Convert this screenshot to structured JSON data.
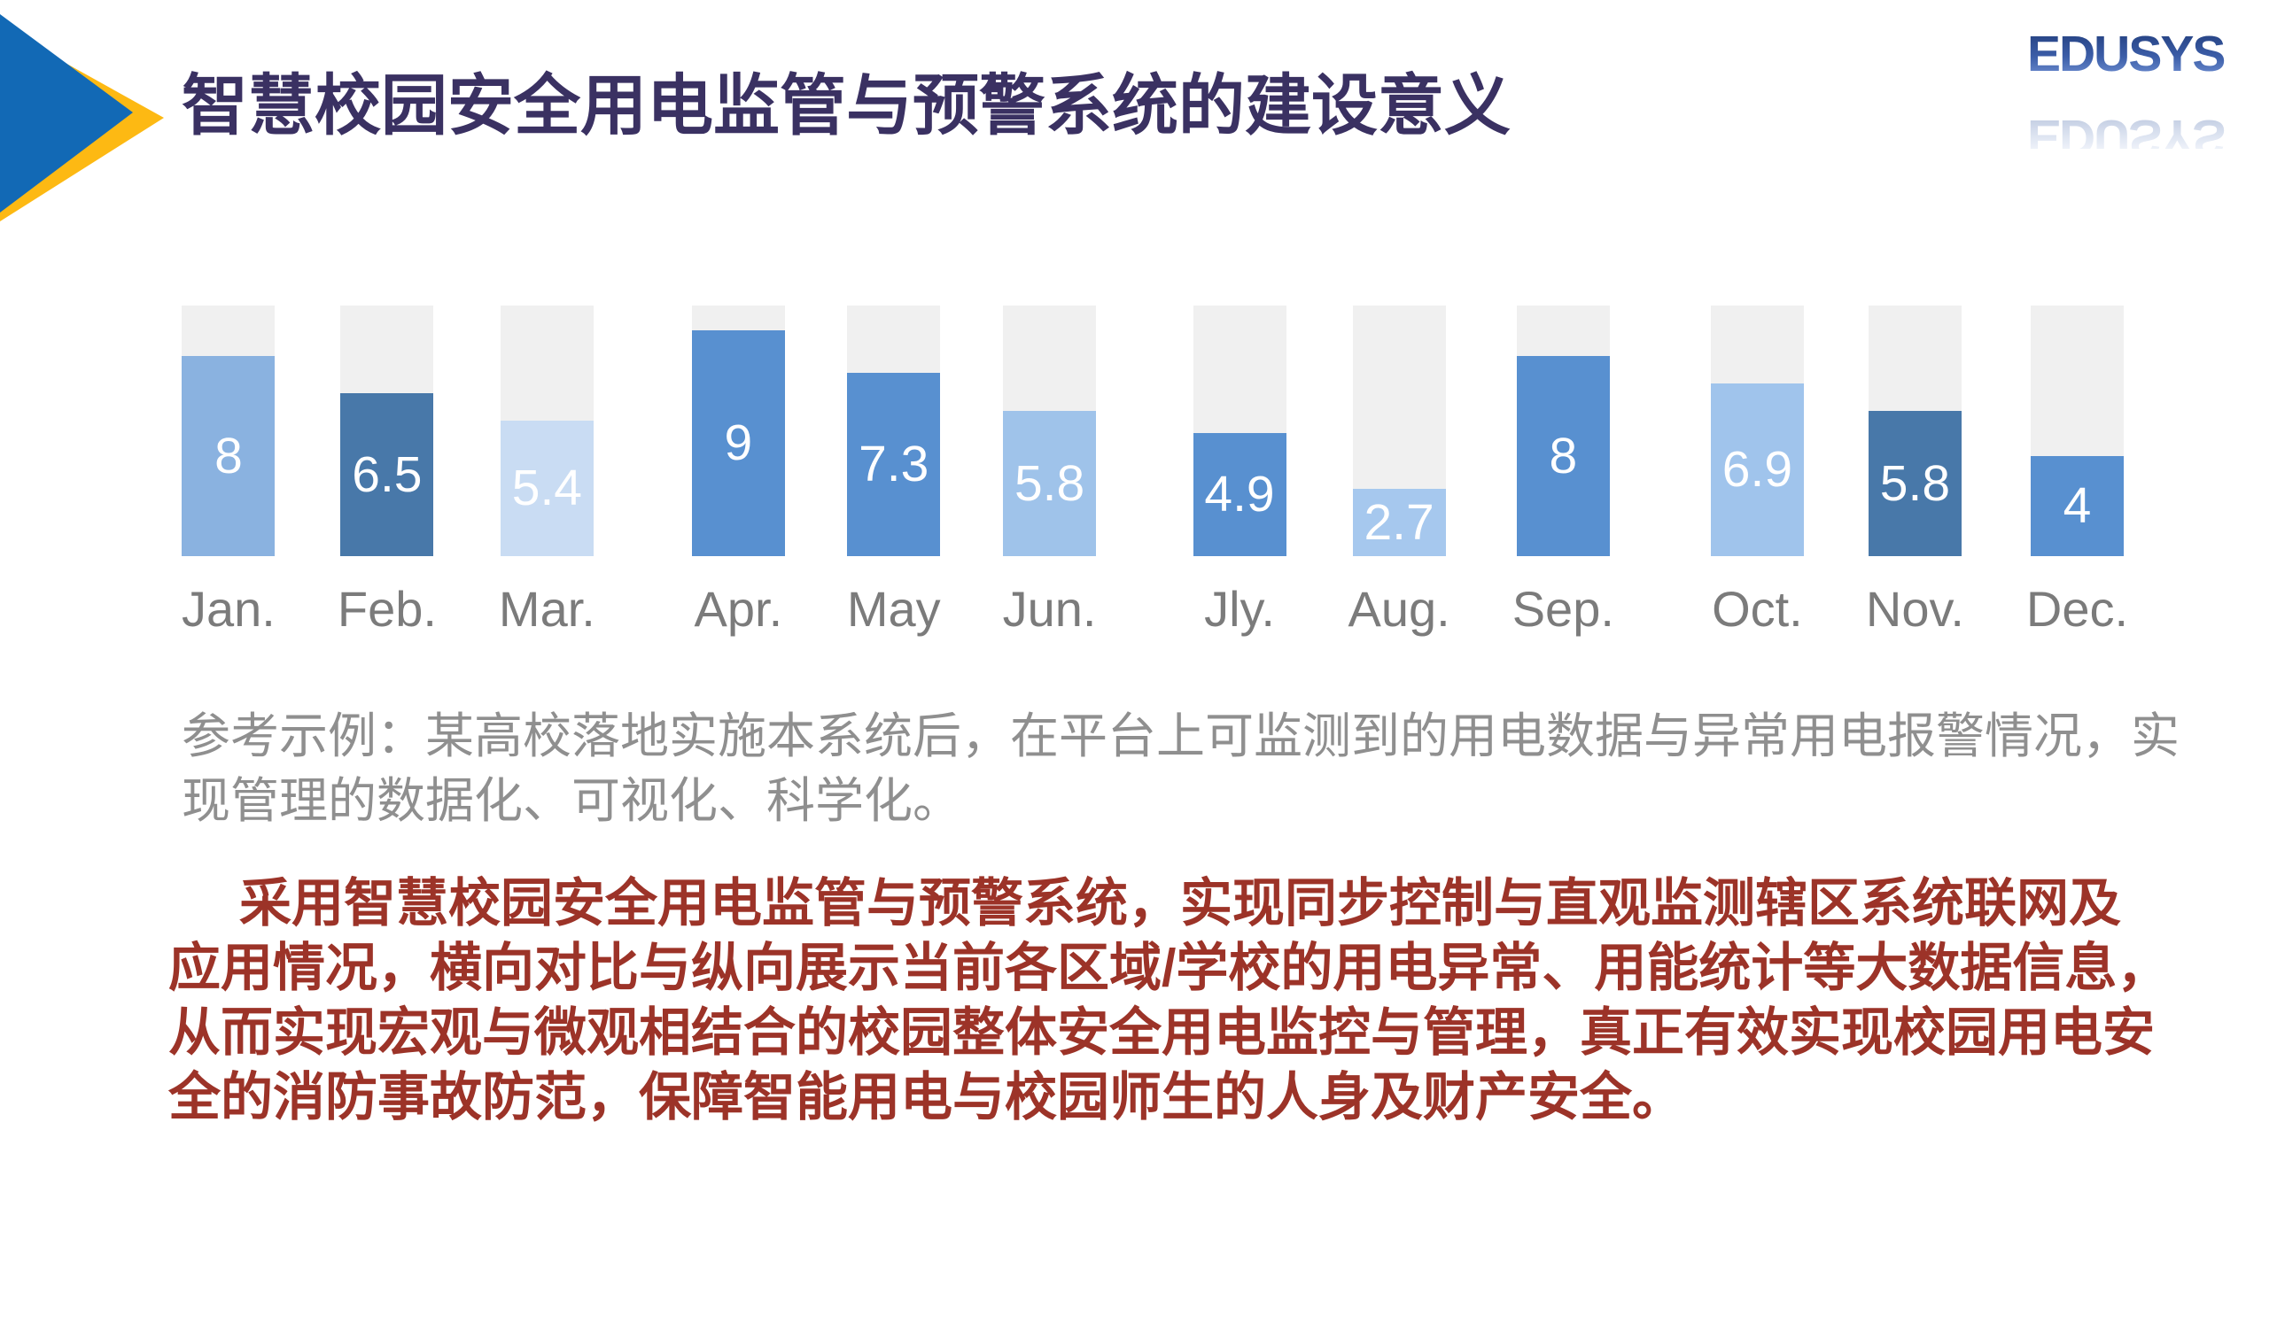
{
  "slide": {
    "background": "#ffffff"
  },
  "header": {
    "title": "智慧校园安全用电监管与预警系统的建设意义",
    "title_color": "#3a3162",
    "corner_accent": {
      "blue": "#1269b5",
      "yellow": "#fdb913"
    },
    "logo": {
      "text": "EDUSYS",
      "gradient_top": "#1f3a78",
      "gradient_bottom": "#7b9bdc"
    }
  },
  "chart_data": {
    "type": "bar",
    "title": "",
    "xlabel": "",
    "ylabel": "",
    "categories": [
      "Jan.",
      "Feb.",
      "Mar.",
      "Apr.",
      "May",
      "Jun.",
      "Jly.",
      "Aug.",
      "Sep.",
      "Oct.",
      "Nov.",
      "Dec."
    ],
    "values": [
      8,
      6.5,
      5.4,
      9,
      7.3,
      5.8,
      4.9,
      2.7,
      8,
      6.9,
      5.8,
      4
    ],
    "ylim": [
      0,
      10
    ],
    "grid": false,
    "legend": false,
    "track_color": "#f0f0f0",
    "bar_colors": [
      "#8ab2e0",
      "#4878a9",
      "#c9dcf3",
      "#5890d0",
      "#5890d0",
      "#9fc3ea",
      "#5890d0",
      "#a6c8ee",
      "#5890d0",
      "#a0c4ec",
      "#4878a9",
      "#5890d0"
    ],
    "value_label_color": "#ffffff",
    "category_label_color": "#7b7b7b"
  },
  "caption": {
    "color": "#8f8f8f",
    "lines": [
      "参考示例：某高校落地实施本系统后，在平台上可监测到的用电数据与异常用电报警情况，实",
      "现管理的数据化、可视化、科学化。"
    ]
  },
  "paragraph": {
    "color": "#9c3328",
    "lines": [
      "采用智慧校园安全用电监管与预警系统，实现同步控制与直观监测辖区系统联网及",
      "应用情况，横向对比与纵向展示当前各区域/学校的用电异常、用能统计等大数据信息，",
      "从而实现宏观与微观相结合的校园整体安全用电监控与管理，真正有效实现校园用电安",
      "全的消防事故防范，保障智能用电与校园师生的人身及财产安全。"
    ]
  }
}
